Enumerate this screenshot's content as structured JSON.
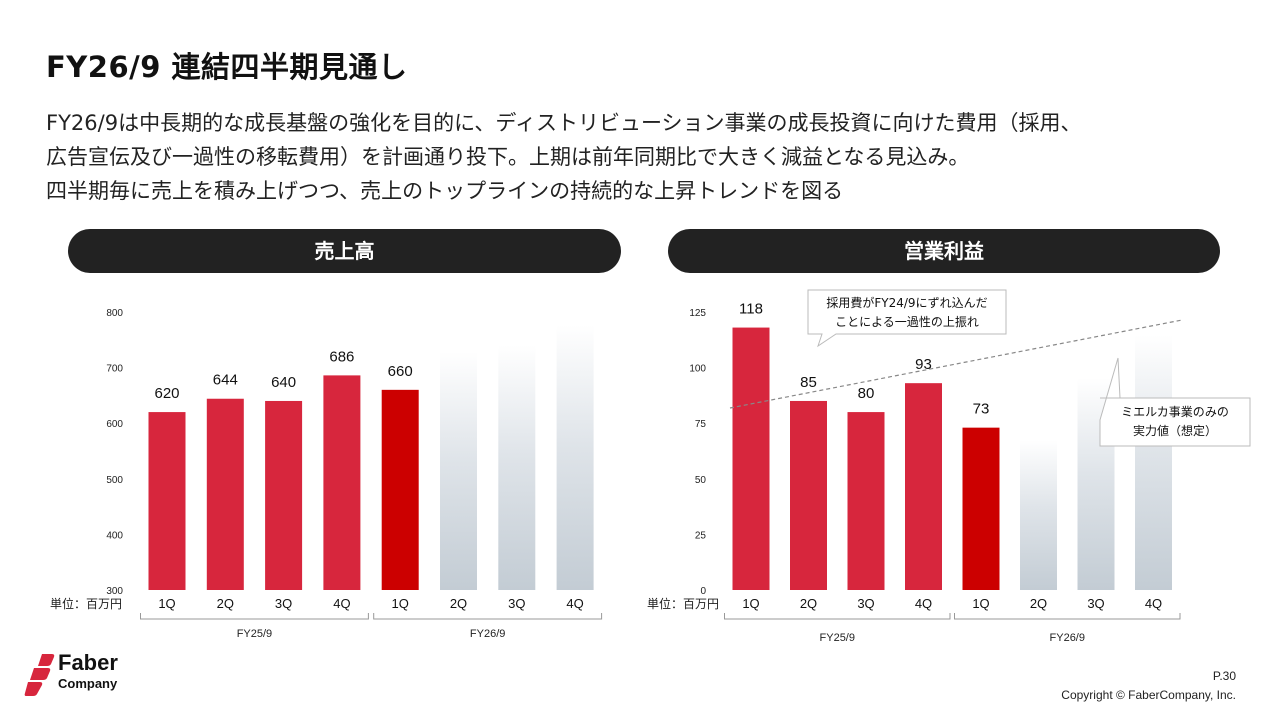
{
  "slide": {
    "title": "FY26/9 連結四半期見通し",
    "desc": [
      "FY26/9は中長期的な成長基盤の強化を目的に、ディストリビューション事業の成長投資に向けた費用（採用、",
      "広告宣伝及び一過性の移転費用）を計画通り投下。上期は前年同期比で大きく減益となる見込み。",
      "四半期毎に売上を積み上げつつ、売上のトップラインの持続的な上昇トレンドを図る"
    ],
    "page": "P.30",
    "copyright": "Copyright © FaberCompany, Inc.",
    "logo": {
      "line1": "Faber",
      "line2": "Company"
    }
  },
  "colors": {
    "bar_past": "#d7263d",
    "bar_current": "#cc0000",
    "bar_forecast": "#c9d1d9",
    "pill": "#222222"
  },
  "chart_data": [
    {
      "type": "bar",
      "title": "売上高",
      "unit_label": "単位：百万円",
      "categories": [
        "1Q",
        "2Q",
        "3Q",
        "4Q",
        "1Q",
        "2Q",
        "3Q",
        "4Q"
      ],
      "groups": [
        {
          "label": "FY25/9",
          "span": [
            0,
            3
          ]
        },
        {
          "label": "FY26/9",
          "span": [
            4,
            7
          ]
        }
      ],
      "values": [
        620,
        644,
        640,
        686,
        660,
        null,
        null,
        null
      ],
      "forecast_indices": [
        5,
        6,
        7
      ],
      "ylim": [
        300,
        800
      ],
      "yticks": [
        300,
        400,
        500,
        600,
        700,
        800
      ]
    },
    {
      "type": "bar",
      "title": "営業利益",
      "unit_label": "単位：百万円",
      "categories": [
        "1Q",
        "2Q",
        "3Q",
        "4Q",
        "1Q",
        "2Q",
        "3Q",
        "4Q"
      ],
      "groups": [
        {
          "label": "FY25/9",
          "span": [
            0,
            3
          ]
        },
        {
          "label": "FY26/9",
          "span": [
            4,
            7
          ]
        }
      ],
      "values": [
        118,
        85,
        80,
        93,
        73,
        null,
        null,
        null
      ],
      "forecast_indices": [
        5,
        6,
        7
      ],
      "ylim": [
        0,
        125
      ],
      "yticks": [
        0,
        25,
        50,
        75,
        100,
        125
      ],
      "annotations": [
        {
          "text": [
            "採用費がFY24/9にずれ込んだ",
            "ことによる一過性の上振れ"
          ]
        },
        {
          "text": [
            "ミエルカ事業のみの",
            "実力値（想定）"
          ]
        }
      ]
    }
  ]
}
